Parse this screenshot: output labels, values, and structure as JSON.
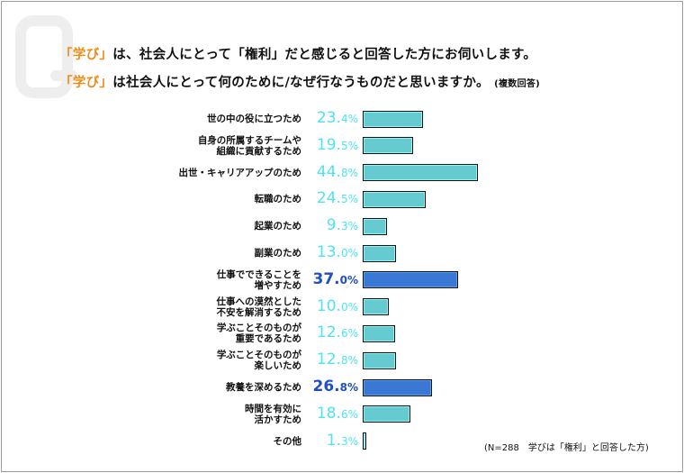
{
  "header": {
    "line1_highlight": "「学び」",
    "line1_text": "は、社会人にとって「権利」だと感じると回答した方にお伺いします。",
    "line2_highlight": "「学び」",
    "line2_text": "は社会人にとって何のために/なぜ行なうものだと思いますか。",
    "line2_note": "(複数回答)"
  },
  "colors": {
    "accent": "#f08a14",
    "bar": "#66cbd1",
    "bar_highlight": "#3a78d6",
    "pct": "#4ee3f2",
    "pct_highlight": "#1f4fc4"
  },
  "chart_data": {
    "type": "bar",
    "orientation": "horizontal",
    "title": "「学び」は社会人にとって何のために/なぜ行なうものだと思いますか。(複数回答)",
    "categories": [
      "世の中の役に立つため",
      "自身の所属するチームや\n組織に貢献するため",
      "出世・キャリアアップのため",
      "転職のため",
      "起業のため",
      "副業のため",
      "仕事でできることを\n増やすため",
      "仕事への漠然とした\n不安を解消するため",
      "学ぶことそのものが\n重要であるため",
      "学ぶことそのものが\n楽しいため",
      "教養を深めるため",
      "時間を有効に\n活かすため",
      "その他"
    ],
    "values": [
      23.4,
      19.5,
      44.8,
      24.5,
      9.3,
      13.0,
      37.0,
      10.0,
      12.6,
      12.8,
      26.8,
      18.6,
      1.3
    ],
    "value_labels_int": [
      "23.",
      "19.",
      "44.",
      "24.",
      "9.",
      "13.",
      "37.",
      "10.",
      "12.",
      "12.",
      "26.",
      "18.",
      "1."
    ],
    "value_labels_dec": [
      "4%",
      "5%",
      "8%",
      "5%",
      "3%",
      "0%",
      "0%",
      "0%",
      "6%",
      "8%",
      "8%",
      "6%",
      "3%"
    ],
    "highlighted": [
      false,
      false,
      false,
      false,
      false,
      false,
      true,
      false,
      false,
      false,
      true,
      false,
      false
    ],
    "unit": "%",
    "xlim": [
      0,
      45
    ]
  },
  "footnote": "(N=288　学びは「権利」と回答した方)"
}
